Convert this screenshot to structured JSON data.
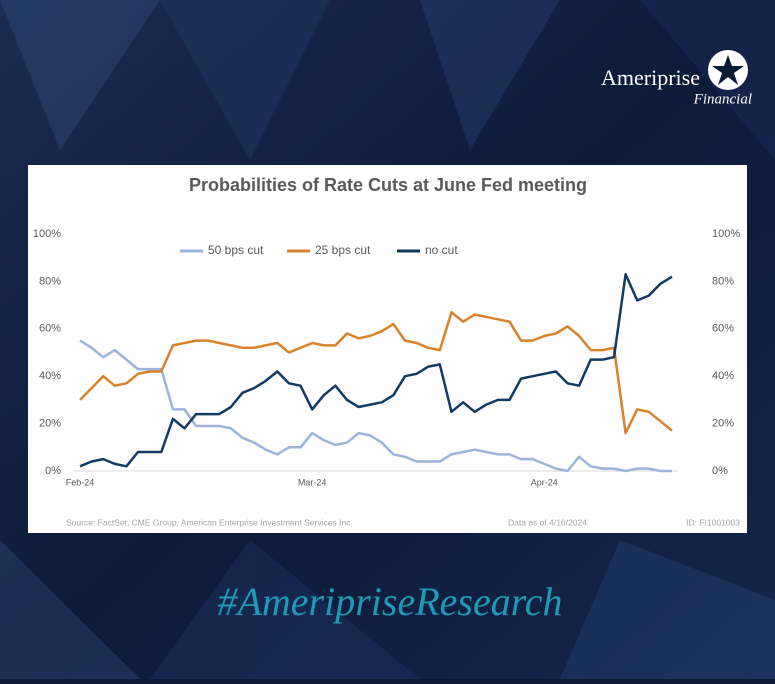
{
  "brand": {
    "name": "Ameriprise",
    "tagline": "Financial"
  },
  "hashtag": "#AmeripriseResearch",
  "chart_data": {
    "type": "line",
    "title": "Probabilities of Rate Cuts at June Fed meeting",
    "source": "Source: FactSet, CME Group, American Enterprise Investment Services Inc.",
    "as_of": "Data as of 4/16/2024",
    "id": "ID: FI1001003",
    "legend": "top",
    "grid": false,
    "categories": [
      "Feb-24",
      null,
      null,
      null,
      null,
      null,
      null,
      null,
      null,
      null,
      null,
      null,
      null,
      null,
      null,
      null,
      null,
      null,
      null,
      null,
      "Mar-24",
      null,
      null,
      null,
      null,
      null,
      null,
      null,
      null,
      null,
      null,
      null,
      null,
      null,
      null,
      null,
      null,
      null,
      null,
      null,
      "Apr-24",
      null,
      null,
      null,
      null,
      null,
      null,
      null,
      null,
      null,
      null,
      null
    ],
    "ylim": [
      0,
      100
    ],
    "yticks": [
      {
        "value": 0,
        "label": "0%"
      },
      {
        "value": 20,
        "label": "20%"
      },
      {
        "value": 40,
        "label": "40%"
      },
      {
        "value": 60,
        "label": "60%"
      },
      {
        "value": 80,
        "label": "80%"
      },
      {
        "value": 100,
        "label": "100%"
      }
    ],
    "y2lim": [
      0,
      100
    ],
    "y2ticks": [
      {
        "value": 0,
        "label": "0%"
      },
      {
        "value": 20,
        "label": "20%"
      },
      {
        "value": 40,
        "label": "40%"
      },
      {
        "value": 60,
        "label": "60%"
      },
      {
        "value": 80,
        "label": "80%"
      },
      {
        "value": 100,
        "label": "100%"
      }
    ],
    "series": [
      {
        "name": "50 bps cut",
        "color": "#9db3da",
        "values": [
          55,
          52,
          48,
          51,
          47,
          43,
          43,
          43,
          26,
          26,
          19,
          19,
          19,
          18,
          14,
          12,
          9,
          7,
          10,
          10,
          16,
          13,
          11,
          12,
          16,
          15,
          12,
          7,
          6,
          4,
          4,
          4,
          7,
          8,
          9,
          8,
          7,
          7,
          5,
          5,
          3,
          1,
          0,
          6,
          2,
          1,
          1,
          0,
          1,
          1,
          0,
          0
        ]
      },
      {
        "name": "25 bps cut",
        "color": "#d9822b",
        "values": [
          30,
          35,
          40,
          36,
          37,
          41,
          42,
          42,
          53,
          54,
          55,
          55,
          54,
          53,
          52,
          52,
          53,
          54,
          50,
          52,
          54,
          53,
          53,
          58,
          56,
          57,
          59,
          62,
          55,
          54,
          52,
          51,
          67,
          63,
          66,
          65,
          64,
          63,
          55,
          55,
          57,
          58,
          61,
          57,
          51,
          51,
          52,
          16,
          26,
          25,
          21,
          17
        ]
      },
      {
        "name": "no cut",
        "color": "#123a63",
        "values": [
          2,
          4,
          5,
          3,
          2,
          8,
          8,
          8,
          22,
          18,
          24,
          24,
          24,
          27,
          33,
          35,
          38,
          42,
          37,
          36,
          26,
          32,
          36,
          30,
          27,
          28,
          29,
          32,
          40,
          41,
          44,
          45,
          25,
          29,
          25,
          28,
          30,
          30,
          39,
          40,
          41,
          42,
          37,
          36,
          47,
          47,
          48,
          83,
          72,
          74,
          79,
          82
        ]
      }
    ]
  }
}
